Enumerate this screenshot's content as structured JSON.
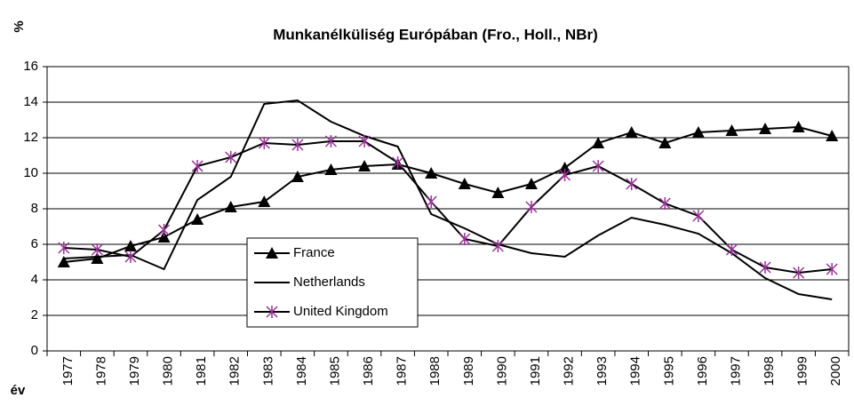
{
  "chart_data": {
    "type": "line",
    "title": "Munkanélküliség Európában (Fro., Holl., NBr)",
    "y_label": "%",
    "x_label": "év",
    "categories": [
      "1977",
      "1978",
      "1979",
      "1980",
      "1981",
      "1982",
      "1983",
      "1984",
      "1985",
      "1986",
      "1987",
      "1988",
      "1989",
      "1990",
      "1991",
      "1992",
      "1993",
      "1994",
      "1995",
      "1996",
      "1997",
      "1998",
      "1999",
      "2000"
    ],
    "series": [
      {
        "name": "France",
        "color": "#000000",
        "marker": "triangle",
        "marker_color": "#000000",
        "values": [
          5.0,
          5.2,
          5.9,
          6.4,
          7.4,
          8.1,
          8.4,
          9.8,
          10.2,
          10.4,
          10.5,
          10.0,
          9.4,
          8.9,
          9.4,
          10.3,
          11.7,
          12.3,
          11.7,
          12.3,
          12.4,
          12.5,
          12.6,
          12.1
        ]
      },
      {
        "name": "Netherlands",
        "color": "#000000",
        "marker": "none",
        "values": [
          5.2,
          5.3,
          5.4,
          4.6,
          8.5,
          9.8,
          13.9,
          14.1,
          12.9,
          12.1,
          11.5,
          7.7,
          6.9,
          6.0,
          5.5,
          5.3,
          6.5,
          7.5,
          7.1,
          6.6,
          5.5,
          4.1,
          3.2,
          2.9
        ]
      },
      {
        "name": "United Kingdom",
        "color": "#000000",
        "marker": "asterisk",
        "marker_color": "#993399",
        "values": [
          5.8,
          5.7,
          5.3,
          6.8,
          10.4,
          10.9,
          11.7,
          11.6,
          11.8,
          11.8,
          10.6,
          8.4,
          6.3,
          5.9,
          8.1,
          9.9,
          10.4,
          9.4,
          8.3,
          7.6,
          5.7,
          4.7,
          4.4,
          4.6
        ]
      }
    ],
    "ylim": [
      0,
      16
    ],
    "yticks": [
      0,
      2,
      4,
      6,
      8,
      10,
      12,
      14,
      16
    ],
    "grid": true
  }
}
